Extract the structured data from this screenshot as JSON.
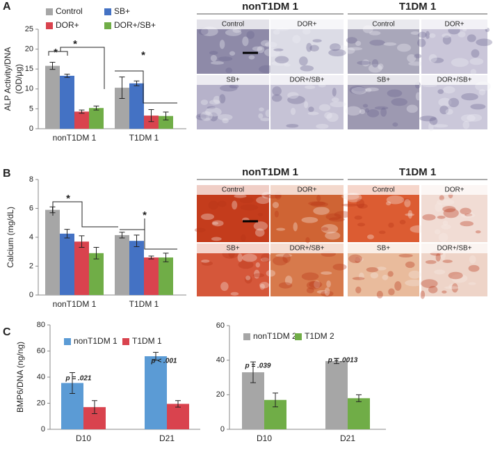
{
  "panel_labels": [
    "A",
    "B",
    "C"
  ],
  "chart_data": [
    {
      "type": "bar",
      "ylabel": [
        "ALP Activity/DNA",
        "(OD/μg)"
      ],
      "categories": [
        "nonT1DM 1",
        "T1DM 1"
      ],
      "ylim": [
        0,
        25
      ],
      "yticks": [
        0,
        5,
        10,
        15,
        20,
        25
      ],
      "annotations": [
        "*",
        "*",
        "*"
      ],
      "series": [
        {
          "name": "Control",
          "color": "#a6a6a6",
          "values": [
            15.8,
            10.3
          ],
          "errors": [
            0.9,
            2.7
          ]
        },
        {
          "name": "SB+",
          "color": "#4472c4",
          "values": [
            13.3,
            11.4
          ],
          "errors": [
            0.4,
            0.6
          ]
        },
        {
          "name": "DOR+",
          "color": "#d9434e",
          "values": [
            4.3,
            3.3
          ],
          "errors": [
            0.4,
            1.5
          ]
        },
        {
          "name": "DOR+/SB+",
          "color": "#70ad47",
          "values": [
            5.2,
            3.2
          ],
          "errors": [
            0.5,
            1.0
          ]
        }
      ]
    },
    {
      "type": "bar",
      "ylabel": [
        "Calcium (mg/dL)"
      ],
      "categories": [
        "nonT1DM 1",
        "T1DM 1"
      ],
      "ylim": [
        0,
        8
      ],
      "yticks": [
        0,
        2,
        4,
        6,
        8
      ],
      "annotations": [
        "*",
        "*"
      ],
      "series": [
        {
          "color": "#a6a6a6",
          "values": [
            5.9,
            4.15
          ],
          "errors": [
            0.2,
            0.2
          ]
        },
        {
          "color": "#4472c4",
          "values": [
            4.25,
            3.75
          ],
          "errors": [
            0.3,
            0.4
          ]
        },
        {
          "color": "#d9434e",
          "values": [
            3.7,
            2.6
          ],
          "errors": [
            0.4,
            0.1
          ]
        },
        {
          "color": "#70ad47",
          "values": [
            2.9,
            2.6
          ],
          "errors": [
            0.4,
            0.3
          ]
        }
      ]
    },
    {
      "type": "bar",
      "ylabel": [
        "BMP6/DNA (ng/ng)"
      ],
      "categories": [
        "D10",
        "D21"
      ],
      "ylim": [
        0,
        80
      ],
      "yticks": [
        0,
        20,
        40,
        60,
        80
      ],
      "annotations": [
        "p = .021",
        "p < .001"
      ],
      "series": [
        {
          "name": "nonT1DM 1",
          "color": "#5b9bd5",
          "values": [
            35.5,
            56
          ],
          "errors": [
            8,
            3
          ]
        },
        {
          "name": "T1DM 1",
          "color": "#d9434e",
          "values": [
            17,
            19.5
          ],
          "errors": [
            5,
            2.5
          ]
        }
      ]
    },
    {
      "type": "bar",
      "categories": [
        "D10",
        "D21"
      ],
      "ylim": [
        0,
        60
      ],
      "yticks": [
        0,
        20,
        40,
        60
      ],
      "annotations": [
        "p = .039",
        "p = .0013"
      ],
      "series": [
        {
          "name": "nonT1DM 2",
          "color": "#a6a6a6",
          "values": [
            33,
            39.5
          ],
          "errors": [
            6,
            1.5
          ]
        },
        {
          "name": "T1DM 2",
          "color": "#70ad47",
          "values": [
            17,
            18
          ],
          "errors": [
            4,
            2
          ]
        }
      ]
    }
  ],
  "micrographs": [
    [
      {
        "header": "nonT1DM 1",
        "labels": [
          "Control",
          "DOR+",
          "SB+",
          "DOR+/SB+"
        ]
      },
      {
        "header": "T1DM 1",
        "labels": [
          "Control",
          "DOR+",
          "SB+",
          "DOR+/SB+"
        ]
      }
    ],
    [
      {
        "header": "nonT1DM 1",
        "labels": [
          "Control",
          "DOR+",
          "SB+",
          "DOR+/SB+"
        ]
      },
      {
        "header": "T1DM 1",
        "labels": [
          "Control",
          "DOR+",
          "SB+",
          "DOR+/SB+"
        ]
      }
    ]
  ]
}
